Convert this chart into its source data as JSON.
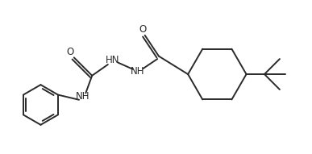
{
  "bg_color": "#ffffff",
  "line_color": "#2a2a2a",
  "line_width": 1.4,
  "font_size": 8.5,
  "figsize": [
    3.87,
    1.91
  ],
  "dpi": 100,
  "xlim": [
    0,
    11
  ],
  "ylim": [
    0,
    5.5
  ]
}
